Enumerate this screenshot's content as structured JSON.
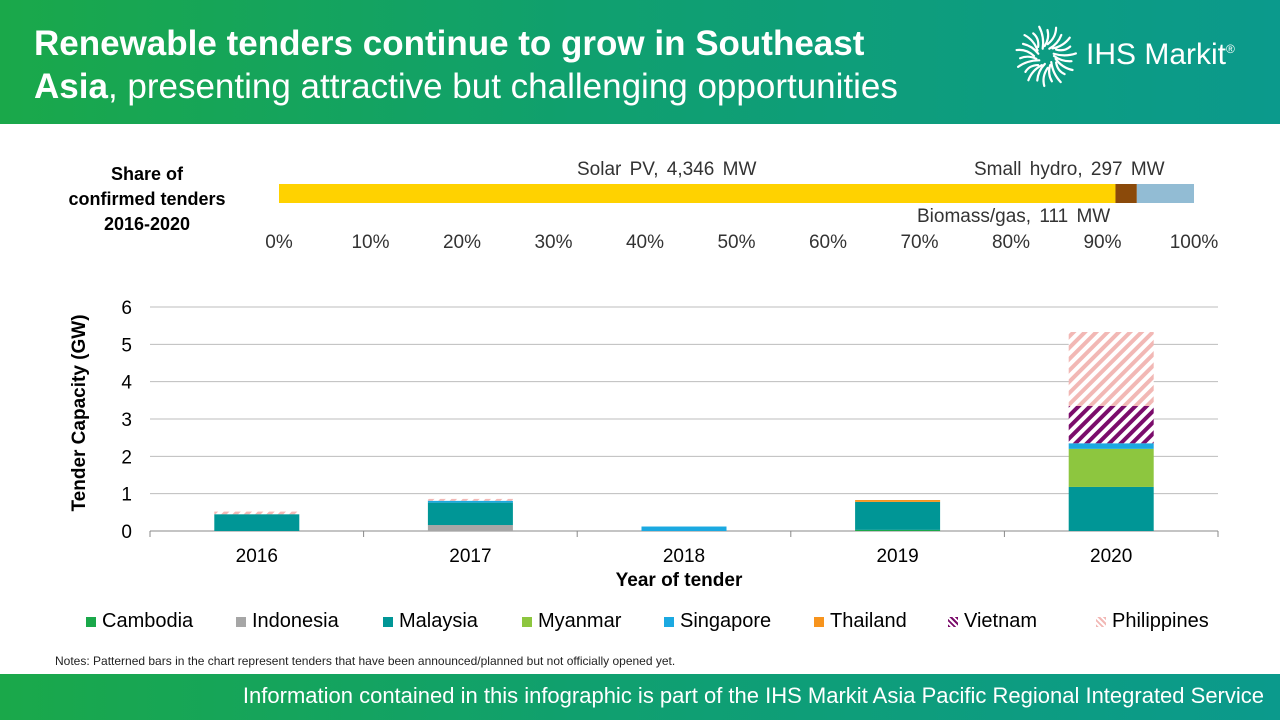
{
  "header": {
    "title_bold_1": "Renewable tenders continue to grow in Southeast",
    "title_bold_2": "Asia",
    "title_rest": ", presenting attractive but challenging opportunities",
    "logo_text": "IHS Markit",
    "logo_mark": "®",
    "colors": {
      "green": "#1aa84a",
      "teal": "#0b9a8c"
    }
  },
  "share_chart": {
    "label": [
      "Share of",
      "confirmed tenders",
      "2016-2020"
    ],
    "ticks": [
      "0%",
      "10%",
      "20%",
      "30%",
      "40%",
      "50%",
      "60%",
      "70%",
      "80%",
      "90%",
      "100%"
    ],
    "segments": [
      {
        "name": "Solar PV",
        "mw": 4346,
        "label": "Solar PV,  4,346  MW",
        "color": "#ffd200"
      },
      {
        "name": "Biomass/gas",
        "mw": 111,
        "label": "Biomass/gas,  111  MW",
        "color": "#8b4a0a"
      },
      {
        "name": "Small hydro",
        "mw": 297,
        "label": "Small hydro,  297  MW",
        "color": "#92bcd4"
      }
    ]
  },
  "chart_data": {
    "type": "bar",
    "stacked": true,
    "categories": [
      "2016",
      "2017",
      "2018",
      "2019",
      "2020"
    ],
    "xlabel": "Year of tender",
    "ylabel": "Tender Capacity (GW)",
    "ylim": [
      0,
      6
    ],
    "yticks": [
      0,
      1,
      2,
      3,
      4,
      5,
      6
    ],
    "grid": true,
    "legend_position": "bottom",
    "series": [
      {
        "name": "Cambodia",
        "color": "#1aa84a",
        "values": [
          0,
          0,
          0,
          0.03,
          0
        ]
      },
      {
        "name": "Indonesia",
        "color": "#a6a6a6",
        "values": [
          0,
          0.16,
          0,
          0,
          0
        ]
      },
      {
        "name": "Malaysia",
        "color": "#009696",
        "values": [
          0.45,
          0.6,
          0,
          0.75,
          1.18
        ]
      },
      {
        "name": "Myanmar",
        "color": "#8dc63f",
        "values": [
          0,
          0,
          0,
          0,
          1.02
        ]
      },
      {
        "name": "Singapore",
        "color": "#1ba9e1",
        "values": [
          0,
          0.05,
          0.12,
          0,
          0.15
        ]
      },
      {
        "name": "Thailand",
        "color": "#f7941d",
        "values": [
          0,
          0,
          0,
          0.05,
          0
        ]
      },
      {
        "name": "Vietnam",
        "color": "#7b0c6b",
        "pattern": "hatch",
        "values": [
          0,
          0,
          0,
          0,
          1.0
        ]
      },
      {
        "name": "Philippines",
        "color": "#f2b8b5",
        "pattern": "hatch",
        "values": [
          0.07,
          0.05,
          0,
          0,
          1.98
        ]
      }
    ]
  },
  "notes": "Notes: Patterned bars in the chart represent tenders that have been announced/planned  but not officially opened yet.",
  "footer": "Information contained in this infographic is part of the IHS Markit Asia Pacific Regional Integrated Service"
}
